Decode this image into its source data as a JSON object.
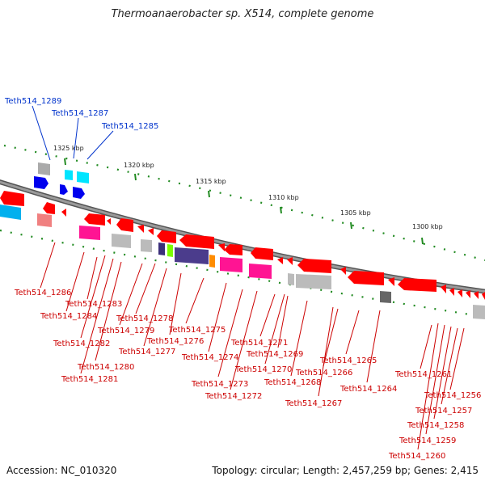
{
  "title": "Thermoanaerobacter sp. X514, complete genome",
  "accession": "Accession: NC_010320",
  "summary": "Topology: circular; Length: 2,457,259 bp; Genes: 2,415",
  "ruler": [
    "1325 kbp",
    "1320 kbp",
    "1315 kbp",
    "1310 kbp",
    "1305 kbp",
    "1300 kbp"
  ],
  "genes_forward": [
    "Teth514_1289",
    "Teth514_1287",
    "Teth514_1285"
  ],
  "genes_reverse": [
    "Teth514_1286",
    "Teth514_1283",
    "Teth514_1284",
    "Teth514_1282",
    "Teth514_1280",
    "Teth514_1281",
    "Teth514_1278",
    "Teth514_1279",
    "Teth514_1277",
    "Teth514_1276",
    "Teth514_1275",
    "Teth514_1274",
    "Teth514_1273",
    "Teth514_1272",
    "Teth514_1271",
    "Teth514_1270",
    "Teth514_1269",
    "Teth514_1268",
    "Teth514_1267",
    "Teth514_1266",
    "Teth514_1265",
    "Teth514_1264",
    "Teth514_1261",
    "Teth514_1256",
    "Teth514_1257",
    "Teth514_1258",
    "Teth514_1259",
    "Teth514_1260"
  ],
  "colors": {
    "forward_label": "#0033cc",
    "reverse_label": "#cc0000",
    "gene_red": "#ff0000",
    "gene_blue": "#0000ee",
    "gene_cyan": "#00e5ff",
    "gene_pink": "#ff1493",
    "gene_gray": "#aaaaaa",
    "gene_purple": "#4b3c8c",
    "gene_green": "#7cfc00",
    "gene_orange": "#ff8c00",
    "backbone": "#777777",
    "tick": "#228b22"
  }
}
